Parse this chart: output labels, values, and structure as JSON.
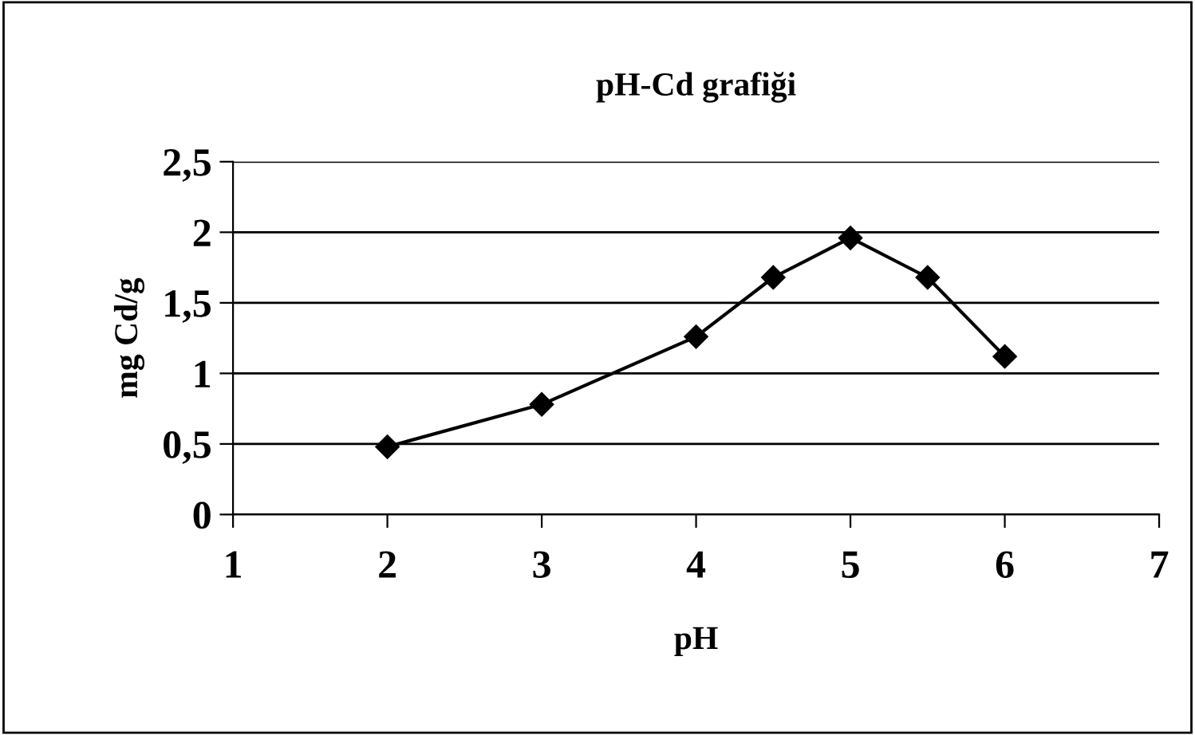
{
  "chart_data": {
    "type": "line",
    "title": "pH-Cd grafiği",
    "xlabel": "pH",
    "ylabel": "mg Cd/g",
    "x": [
      2,
      3,
      4,
      4.5,
      5,
      5.5,
      6
    ],
    "series": [
      {
        "color": "#000000",
        "values": [
          0.48,
          0.78,
          1.26,
          1.68,
          1.96,
          1.68,
          1.12
        ]
      }
    ],
    "xlim": [
      1,
      7
    ],
    "xticks": [
      1,
      2,
      3,
      4,
      5,
      6,
      7
    ],
    "ylim": [
      0,
      2.5
    ],
    "yticks": [
      0,
      {
        "value": 0.5,
        "label": "0,5"
      },
      1,
      {
        "value": 1.5,
        "label": "1,5"
      },
      2,
      {
        "value": 2.5,
        "label": "2,5"
      }
    ],
    "grid": "y",
    "marker": "diamond",
    "line_style": "solid",
    "legend": false
  }
}
